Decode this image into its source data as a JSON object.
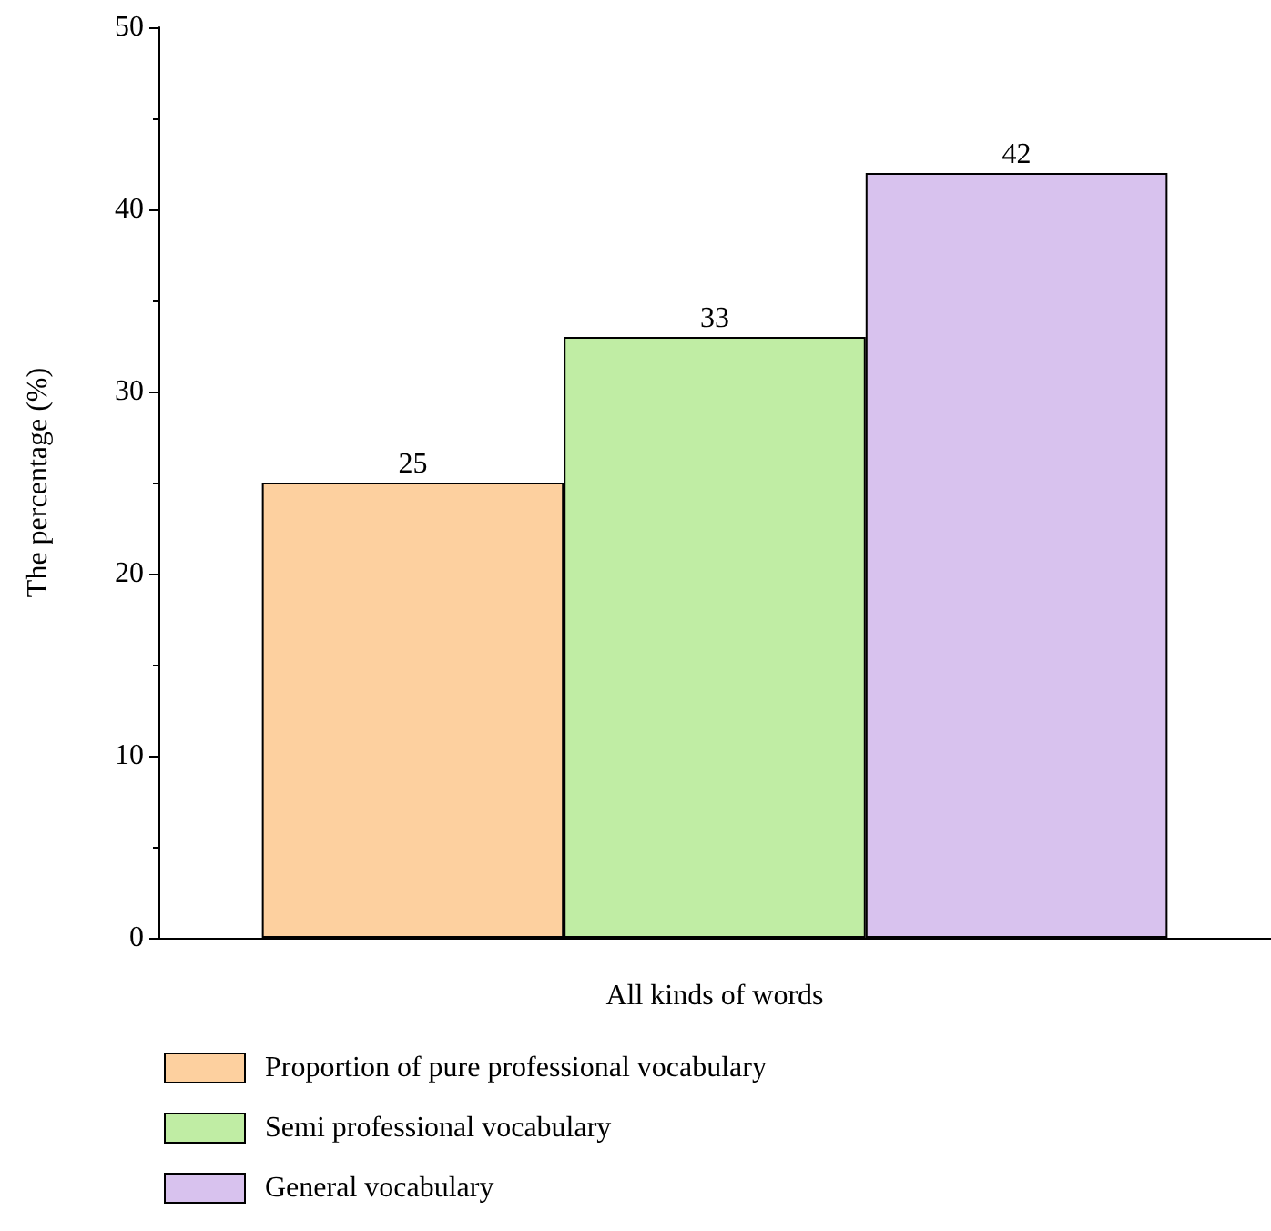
{
  "chart_data": {
    "type": "bar",
    "xlabel": "All kinds of words",
    "ylabel": "The percentage (%)",
    "categories": [
      null
    ],
    "series": [
      {
        "name": "Proportion of pure professional vocabulary",
        "color": "#fdd09f",
        "values": [
          25
        ]
      },
      {
        "name": "Semi professional vocabulary",
        "color": "#c0eda4",
        "values": [
          33
        ]
      },
      {
        "name": "General vocabulary",
        "color": "#d8c2ee",
        "values": [
          42
        ]
      }
    ],
    "ylim": [
      0,
      50
    ],
    "yticks": [
      0,
      10,
      20,
      30,
      40,
      50
    ],
    "data_labels": true,
    "grid": false,
    "legend": "bottom left"
  }
}
